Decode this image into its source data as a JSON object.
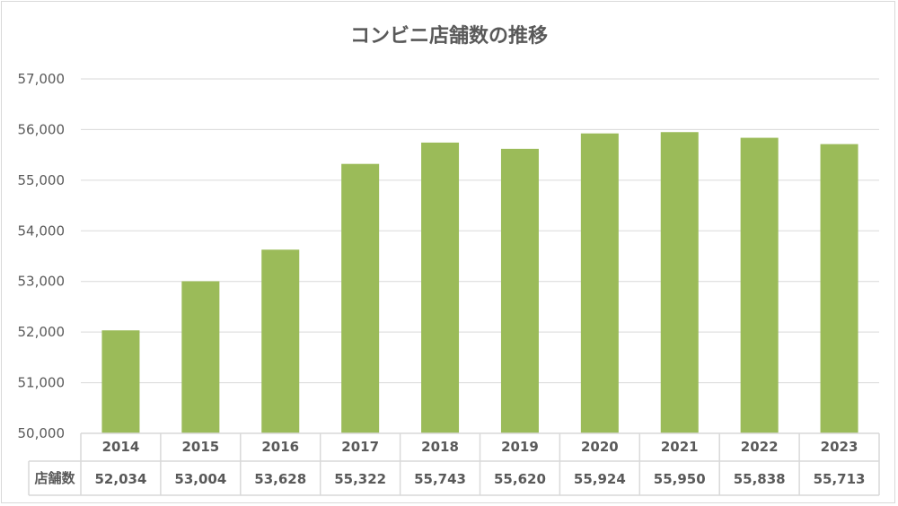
{
  "chart_data": {
    "type": "bar",
    "title": "コンビニ店舗数の推移",
    "categories": [
      "2014",
      "2015",
      "2016",
      "2017",
      "2018",
      "2019",
      "2020",
      "2021",
      "2022",
      "2023"
    ],
    "series": [
      {
        "name": "店舗数",
        "values": [
          52034,
          53004,
          53628,
          55322,
          55743,
          55620,
          55924,
          55950,
          55838,
          55713
        ]
      }
    ],
    "value_labels": [
      "52,034",
      "53,004",
      "53,628",
      "55,322",
      "55,743",
      "55,620",
      "55,924",
      "55,950",
      "55,838",
      "55,713"
    ],
    "ylim": [
      50000,
      57000
    ],
    "yticks": [
      50000,
      51000,
      52000,
      53000,
      54000,
      55000,
      56000,
      57000
    ],
    "ytick_labels": [
      "50,000",
      "51,000",
      "52,000",
      "53,000",
      "54,000",
      "55,000",
      "56,000",
      "57,000"
    ],
    "grid": true,
    "data_table": true,
    "legend": "none",
    "bar_color": "#9bbb59"
  }
}
